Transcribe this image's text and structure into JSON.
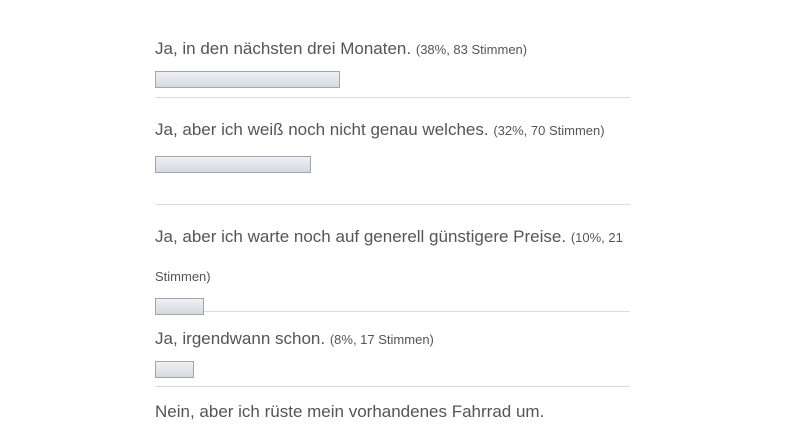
{
  "poll": {
    "options": [
      {
        "label": "Ja, in den nächsten drei Monaten.",
        "meta": "(38%, 83 Stimmen)",
        "percent": 38
      },
      {
        "label": "Ja, aber ich weiß noch nicht genau welches.",
        "meta": "(32%, 70 Stimmen)",
        "percent": 32
      },
      {
        "label": "Ja, aber ich warte noch auf generell günstigere Preise.",
        "meta": "(10%, 21 Stimmen)",
        "percent": 10
      },
      {
        "label": "Ja, irgendwann schon.",
        "meta": "(8%, 17 Stimmen)",
        "percent": 8
      },
      {
        "label": "Nein, aber ich rüste mein vorhandenes Fahrrad um.",
        "meta": "",
        "percent": null
      }
    ],
    "bar_color": "#dfe2e7",
    "bar_border_color": "#9ea6b2"
  }
}
